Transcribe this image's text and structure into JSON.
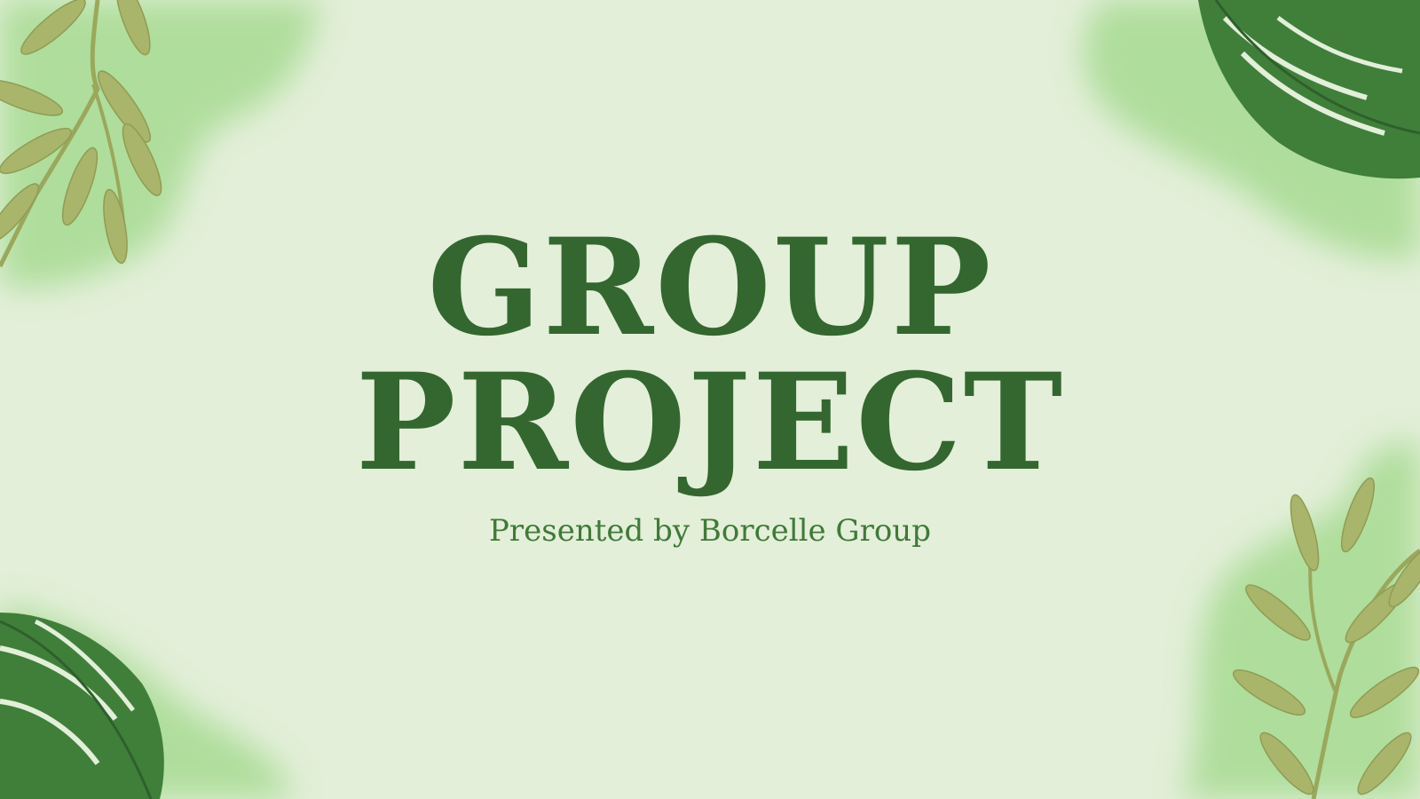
{
  "slide": {
    "title_line_1": "GROUP",
    "title_line_2": "PROJECT",
    "subtitle": "Presented by Borcelle Group"
  },
  "colors": {
    "background": "#e3efd9",
    "title": "#33672f",
    "subtitle": "#3f7a37",
    "watercolor": "#8fd47a",
    "monstera_leaf": "#3f7f3a",
    "willow_leaf": "#a8b56a"
  },
  "decorations": [
    "willow-branch-icon",
    "monstera-leaf-icon",
    "watercolor-splash"
  ]
}
